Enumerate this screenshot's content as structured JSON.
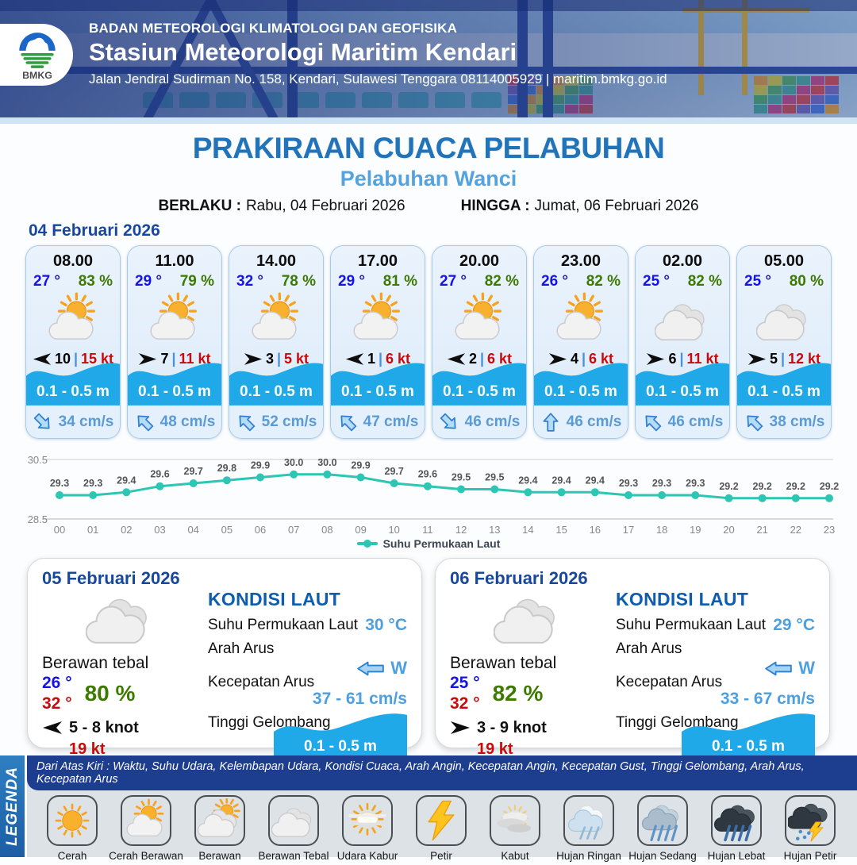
{
  "header": {
    "logo_text": "BMKG",
    "agency": "BADAN METEOROLOGI KLIMATOLOGI DAN GEOFISIKA",
    "station": "Stasiun Meteorologi Maritim Kendari",
    "address": "Jalan Jendral Sudirman No. 158, Kendari, Sulawesi Tenggara  08114005929 | maritim.bmkg.go.id"
  },
  "titles": {
    "main": "PRAKIRAAN CUACA PELABUHAN",
    "sub": "Pelabuhan Wanci"
  },
  "validity": {
    "berlaku_label": "BERLAKU :",
    "berlaku_value": "Rabu, 04 Februari 2026",
    "hingga_label": "HINGGA :",
    "hingga_value": "Jumat, 06 Februari 2026"
  },
  "forecast_day": {
    "date": "04 Februari 2026",
    "cards": [
      {
        "time": "08.00",
        "temp": "27 °",
        "humidity": "83 %",
        "weather_icon": "cerah-berawan",
        "wind_dir": "left",
        "wind_value": "10",
        "gust": "15 kt",
        "wave_height": "0.1 - 0.5 m",
        "current_dir": "SE",
        "current_speed": "34 cm/s"
      },
      {
        "time": "11.00",
        "temp": "29 °",
        "humidity": "79 %",
        "weather_icon": "cerah-berawan",
        "wind_dir": "right",
        "wind_value": "7",
        "gust": "11 kt",
        "wave_height": "0.1 - 0.5 m",
        "current_dir": "NW",
        "current_speed": "48 cm/s"
      },
      {
        "time": "14.00",
        "temp": "32 °",
        "humidity": "78 %",
        "weather_icon": "cerah-berawan",
        "wind_dir": "right",
        "wind_value": "3",
        "gust": "5 kt",
        "wave_height": "0.1 - 0.5 m",
        "current_dir": "NW",
        "current_speed": "52 cm/s"
      },
      {
        "time": "17.00",
        "temp": "29 °",
        "humidity": "81 %",
        "weather_icon": "cerah-berawan",
        "wind_dir": "left",
        "wind_value": "1",
        "gust": "6 kt",
        "wave_height": "0.1 - 0.5 m",
        "current_dir": "NW",
        "current_speed": "47 cm/s"
      },
      {
        "time": "20.00",
        "temp": "27 °",
        "humidity": "82 %",
        "weather_icon": "cerah-berawan",
        "wind_dir": "left",
        "wind_value": "2",
        "gust": "6 kt",
        "wave_height": "0.1 - 0.5 m",
        "current_dir": "SE",
        "current_speed": "46 cm/s"
      },
      {
        "time": "23.00",
        "temp": "26 °",
        "humidity": "82 %",
        "weather_icon": "cerah-berawan",
        "wind_dir": "right",
        "wind_value": "4",
        "gust": "6 kt",
        "wave_height": "0.1 - 0.5 m",
        "current_dir": "N",
        "current_speed": "46 cm/s"
      },
      {
        "time": "02.00",
        "temp": "25 °",
        "humidity": "82 %",
        "weather_icon": "berawan-tebal",
        "wind_dir": "right",
        "wind_value": "6",
        "gust": "11 kt",
        "wave_height": "0.1 - 0.5 m",
        "current_dir": "NW",
        "current_speed": "46 cm/s"
      },
      {
        "time": "05.00",
        "temp": "25 °",
        "humidity": "80 %",
        "weather_icon": "berawan-tebal",
        "wind_dir": "right",
        "wind_value": "5",
        "gust": "12 kt",
        "wave_height": "0.1 - 0.5 m",
        "current_dir": "NW",
        "current_speed": "38 cm/s"
      }
    ]
  },
  "chart_data": {
    "type": "line",
    "x": [
      "00",
      "01",
      "02",
      "03",
      "04",
      "05",
      "06",
      "07",
      "08",
      "09",
      "10",
      "11",
      "12",
      "13",
      "14",
      "15",
      "16",
      "17",
      "18",
      "19",
      "20",
      "21",
      "22",
      "23"
    ],
    "series": [
      {
        "name": "Suhu Permukaan Laut",
        "color": "#2dc5b4",
        "values": [
          29.3,
          29.3,
          29.4,
          29.6,
          29.7,
          29.8,
          29.9,
          30.0,
          30.0,
          29.9,
          29.7,
          29.6,
          29.5,
          29.5,
          29.4,
          29.4,
          29.4,
          29.3,
          29.3,
          29.3,
          29.2,
          29.2,
          29.2,
          29.2
        ]
      }
    ],
    "ylim": [
      28.5,
      30.5
    ],
    "yticks": [
      "30.5",
      "28.5"
    ],
    "legend_position": "bottom",
    "grid": true
  },
  "day_cards": [
    {
      "date": "05 Februari 2026",
      "weather_icon": "berawan-tebal",
      "condition": "Berawan tebal",
      "temp_min": "26 °",
      "temp_max": "32 °",
      "humidity": "80 %",
      "wind_dir": "left",
      "wind_range": "5  - 8 knot",
      "gust": "19 kt",
      "sea_title": "KONDISI LAUT",
      "sst_label": "Suhu Permukaan Laut",
      "sst": "30 °C",
      "current_dir_label": "Arah Arus",
      "current_dir": "W",
      "current_speed_label": "Kecepatan Arus",
      "current_speed": "37 - 61 cm/s",
      "wave_label": "Tinggi Gelombang",
      "wave": "0.1 - 0.5 m"
    },
    {
      "date": "06 Februari 2026",
      "weather_icon": "berawan-tebal",
      "condition": "Berawan tebal",
      "temp_min": "25 °",
      "temp_max": "32 °",
      "humidity": "82 %",
      "wind_dir": "right",
      "wind_range": "3  - 9 knot",
      "gust": "19 kt",
      "sea_title": "KONDISI LAUT",
      "sst_label": "Suhu Permukaan Laut",
      "sst": "29 °C",
      "current_dir_label": "Arah Arus",
      "current_dir": "W",
      "current_speed_label": "Kecepatan Arus",
      "current_speed": "33 - 67 cm/s",
      "wave_label": "Tinggi Gelombang",
      "wave": "0.1 - 0.5 m"
    }
  ],
  "legend": {
    "title": "LEGENDA",
    "description": "Dari Atas Kiri : Waktu, Suhu Udara, Kelembapan Udara, Kondisi Cuaca, Arah Angin, Kecepatan Angin, Kecepatan Gust, Tinggi Gelombang, Arah Arus, Kecepatan Arus",
    "items": [
      {
        "label": "Cerah",
        "icon": "cerah"
      },
      {
        "label": "Cerah Berawan",
        "icon": "cerah-berawan"
      },
      {
        "label": "Berawan",
        "icon": "berawan"
      },
      {
        "label": "Berawan Tebal",
        "icon": "berawan-tebal"
      },
      {
        "label": "Udara Kabur",
        "icon": "udara-kabur"
      },
      {
        "label": "Petir",
        "icon": "petir"
      },
      {
        "label": "Kabut",
        "icon": "kabut"
      },
      {
        "label": "Hujan Ringan",
        "icon": "hujan-ringan"
      },
      {
        "label": "Hujan Sedang",
        "icon": "hujan-sedang"
      },
      {
        "label": "Hujan Lebat",
        "icon": "hujan-lebat"
      },
      {
        "label": "Hujan Petir",
        "icon": "hujan-petir"
      }
    ]
  },
  "colors": {
    "title_blue": "#2173ba",
    "subtitle_blue": "#55a3dd",
    "date_navy": "#17489c",
    "temp_blue": "#1414e8",
    "humidity_green": "#3c7a00",
    "gust_red": "#c70b0b",
    "wave_blue": "#1fa9e9",
    "current_text_blue": "#5b9bd5",
    "chart_teal": "#2dc5b4",
    "legend_navy": "#1d3d8f",
    "legend_bar_blue": "#2e7fc2"
  }
}
